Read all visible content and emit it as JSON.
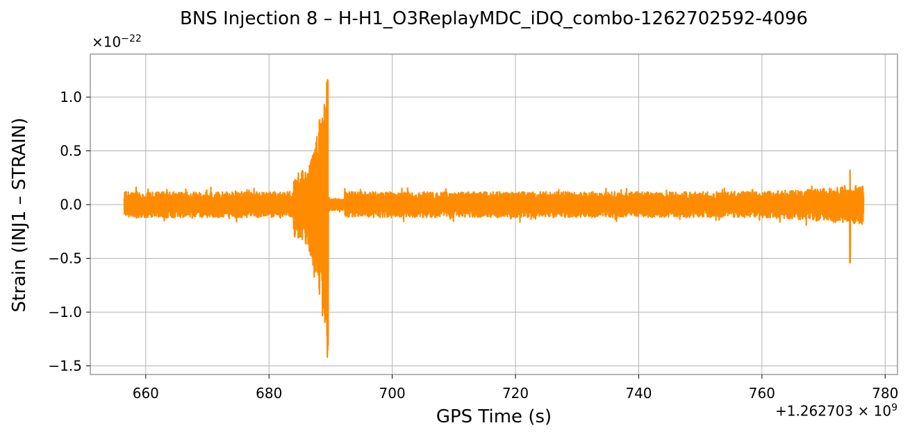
{
  "chart_data": {
    "type": "line",
    "title": "BNS Injection 8 – H-H1_O3ReplayMDC_iDQ_combo-1262702592-4096",
    "xlabel": "GPS Time (s)",
    "ylabel": "Strain (INJ1 – STRAIN)",
    "y_multiplier_label": "×10",
    "y_multiplier_exp": "−22",
    "x_offset_label": "+1.262703 × 10",
    "x_offset_exp": "9",
    "xlim": [
      651,
      782
    ],
    "ylim": [
      -1.58,
      1.4
    ],
    "xticks": [
      660,
      680,
      700,
      720,
      740,
      760,
      780
    ],
    "xtick_labels": [
      "660",
      "680",
      "700",
      "720",
      "740",
      "760",
      "780"
    ],
    "yticks": [
      -1.5,
      -1.0,
      -0.5,
      0.0,
      0.5,
      1.0
    ],
    "ytick_labels": [
      "−1.5",
      "−1.0",
      "−0.5",
      "0.0",
      "0.5",
      "1.0"
    ],
    "grid": true,
    "series": [
      {
        "color": "#ff8c00",
        "x_start": 656.5,
        "x_end": 776.5,
        "features": [
          {
            "type": "noise_band",
            "x_range": [
              656.5,
              776.5
            ],
            "amplitude": 0.12
          },
          {
            "type": "chirp",
            "x_range": [
              684.0,
              689.8
            ],
            "peak_x": 689.6,
            "peak_max": 1.28,
            "peak_min": -1.44
          },
          {
            "type": "glitch",
            "x": 774.3,
            "max": 0.32,
            "min": -0.54
          }
        ]
      }
    ]
  }
}
